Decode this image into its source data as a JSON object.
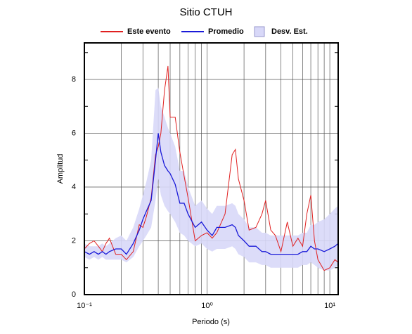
{
  "chart_data": {
    "type": "line",
    "title": "Sitio CTUH",
    "xlabel": "Periodo (s)",
    "ylabel": "Amplitud",
    "xscale": "log",
    "xlim": [
      0.1,
      11.7
    ],
    "ylim": [
      0,
      9.36
    ],
    "xticks": [
      {
        "value": 0.1,
        "label": "10⁻¹"
      },
      {
        "value": 1,
        "label": "10⁰"
      },
      {
        "value": 10,
        "label": "10¹"
      }
    ],
    "xminorticks": [
      0.2,
      0.3,
      0.4,
      0.5,
      0.6,
      0.7,
      0.8,
      0.9,
      2,
      3,
      4,
      5,
      6,
      7,
      8,
      9
    ],
    "yticks": [
      0,
      2,
      4,
      6,
      8
    ],
    "yminorticks": [
      1,
      3,
      5,
      7,
      9
    ],
    "grid": true,
    "legend": "top",
    "x": [
      0.1,
      0.11,
      0.12,
      0.13,
      0.14,
      0.15,
      0.16,
      0.18,
      0.2,
      0.22,
      0.25,
      0.28,
      0.3,
      0.32,
      0.35,
      0.38,
      0.4,
      0.42,
      0.45,
      0.48,
      0.5,
      0.55,
      0.6,
      0.65,
      0.7,
      0.8,
      0.9,
      1.0,
      1.1,
      1.2,
      1.4,
      1.6,
      1.7,
      1.8,
      2.0,
      2.2,
      2.5,
      2.8,
      3.0,
      3.3,
      3.6,
      4.0,
      4.5,
      5,
      5.5,
      6,
      6.5,
      7,
      7.5,
      8,
      9,
      10,
      11,
      11.7
    ],
    "series": [
      {
        "name": "Este evento",
        "color": "#e02020",
        "values": [
          1.7,
          1.9,
          2.0,
          1.8,
          1.6,
          1.9,
          2.1,
          1.5,
          1.5,
          1.3,
          1.6,
          2.6,
          2.5,
          2.9,
          3.6,
          5.2,
          5.5,
          6.0,
          7.6,
          8.5,
          6.6,
          6.6,
          5.3,
          4.4,
          3.6,
          2.0,
          2.2,
          2.3,
          2.1,
          2.3,
          3.0,
          5.2,
          5.4,
          4.3,
          3.5,
          2.4,
          2.5,
          3.0,
          3.5,
          2.4,
          2.2,
          1.6,
          2.7,
          1.8,
          2.1,
          1.8,
          3.0,
          3.7,
          2.0,
          1.3,
          0.9,
          1.0,
          1.3,
          1.2
        ]
      },
      {
        "name": "Promedio",
        "color": "#1a1ad8",
        "values": [
          1.6,
          1.5,
          1.6,
          1.5,
          1.6,
          1.5,
          1.6,
          1.7,
          1.7,
          1.5,
          1.9,
          2.4,
          2.8,
          3.1,
          3.5,
          5.0,
          6.0,
          5.3,
          4.8,
          4.6,
          4.5,
          4.1,
          3.4,
          3.4,
          3.0,
          2.5,
          2.7,
          2.4,
          2.2,
          2.5,
          2.5,
          2.6,
          2.5,
          2.2,
          2.0,
          1.8,
          1.8,
          1.6,
          1.6,
          1.5,
          1.5,
          1.5,
          1.5,
          1.5,
          1.5,
          1.6,
          1.6,
          1.8,
          1.7,
          1.7,
          1.6,
          1.7,
          1.8,
          1.9
        ]
      },
      {
        "name": "Desv. Est.",
        "color": "#d8d8f8",
        "lower": [
          1.4,
          1.3,
          1.4,
          1.3,
          1.4,
          1.3,
          1.3,
          1.3,
          1.3,
          1.2,
          1.4,
          1.8,
          2.0,
          2.2,
          2.5,
          3.5,
          4.3,
          3.7,
          3.3,
          3.1,
          3.0,
          2.7,
          2.3,
          2.2,
          2.0,
          1.8,
          1.9,
          1.7,
          1.6,
          1.7,
          1.7,
          1.8,
          1.7,
          1.5,
          1.4,
          1.2,
          1.2,
          1.1,
          1.1,
          1.0,
          1.0,
          1.0,
          1.0,
          1.0,
          1.0,
          1.1,
          1.1,
          1.2,
          1.1,
          1.0,
          0.9,
          0.9,
          1.0,
          1.1
        ],
        "upper": [
          1.9,
          1.8,
          1.8,
          1.8,
          1.9,
          1.8,
          1.9,
          2.1,
          2.2,
          2.0,
          2.5,
          3.2,
          3.7,
          4.2,
          5.0,
          7.6,
          7.7,
          7.0,
          6.6,
          6.2,
          6.0,
          5.5,
          4.6,
          4.6,
          4.0,
          3.3,
          3.5,
          3.2,
          3.0,
          3.3,
          3.3,
          3.4,
          3.3,
          3.0,
          2.8,
          2.5,
          2.5,
          2.3,
          2.3,
          2.2,
          2.2,
          2.2,
          2.2,
          2.2,
          2.2,
          2.3,
          2.3,
          2.6,
          2.6,
          2.7,
          2.8,
          3.0,
          3.2,
          3.3
        ]
      }
    ]
  }
}
